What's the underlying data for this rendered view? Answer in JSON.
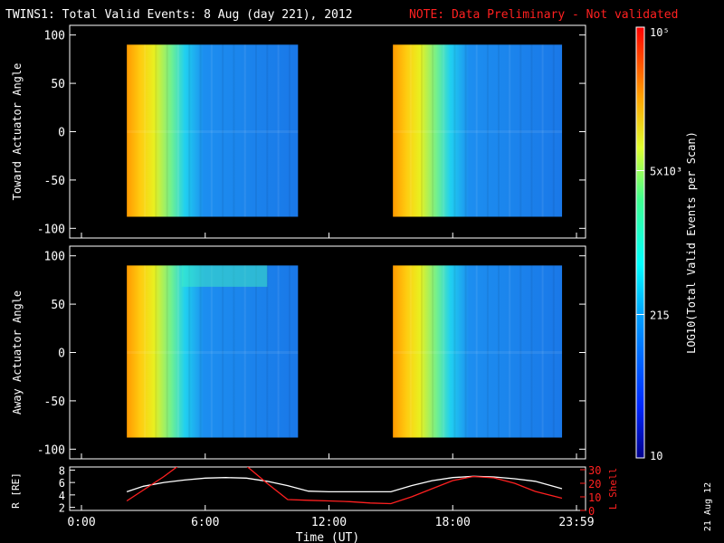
{
  "header": {
    "title": "TWINS1: Total Valid Events:  8 Aug (day 221), 2012",
    "note": "NOTE: Data Preliminary - Not validated",
    "note_color": "#ff2020",
    "side_date": "21 Aug 12"
  },
  "chart_data": [
    {
      "type": "heatmap",
      "ylabel": "Toward Actuator Angle",
      "ylim": [
        -110,
        110
      ],
      "yticks": [
        100,
        50,
        0,
        -50,
        -100
      ],
      "x_time_hours": [
        0,
        24
      ],
      "data_windows_hours": [
        [
          2.2,
          10.5
        ],
        [
          15.1,
          23.3
        ]
      ],
      "angle_range": [
        -88,
        90
      ]
    },
    {
      "type": "heatmap",
      "ylabel": "Away Actuator Angle",
      "ylim": [
        -110,
        110
      ],
      "yticks": [
        100,
        50,
        0,
        -50,
        -100
      ],
      "x_time_hours": [
        0,
        24
      ],
      "data_windows_hours": [
        [
          2.2,
          10.5
        ],
        [
          15.1,
          23.3
        ]
      ],
      "angle_range": [
        -88,
        90
      ]
    },
    {
      "type": "line",
      "ylabel_left": "R [RE]",
      "ylabel_right": "L Shell",
      "left_ticks": [
        8,
        6,
        4,
        2
      ],
      "right_ticks": [
        30,
        20,
        10,
        0
      ],
      "left_ylim": [
        1.5,
        8.5
      ],
      "right_ylim": [
        0,
        32
      ],
      "series": [
        {
          "color": "#ffffff",
          "x": [
            2.2,
            3,
            4,
            5,
            6,
            7,
            8,
            9,
            10,
            11,
            12,
            13,
            14,
            15,
            16,
            17,
            18,
            19,
            20,
            21,
            22,
            23.3
          ],
          "y": [
            4.5,
            5.4,
            6.0,
            6.4,
            6.7,
            6.8,
            6.7,
            6.2,
            5.5,
            4.6,
            4.5,
            4.5,
            4.5,
            4.5,
            5.5,
            6.3,
            6.8,
            7.0,
            6.9,
            6.6,
            6.2,
            5.0
          ]
        },
        {
          "color": "#ff2020",
          "x": [
            2.2,
            3,
            4,
            4.8,
            7.9,
            9,
            10,
            11,
            12,
            13,
            14,
            15,
            16,
            17,
            18,
            19,
            20,
            21,
            22,
            23.3
          ],
          "y": [
            7,
            15,
            25,
            34,
            34,
            20,
            8,
            7.5,
            7,
            6.5,
            5.5,
            5,
            10,
            16,
            22,
            25,
            24,
            20,
            14,
            9
          ]
        }
      ],
      "xticks": [
        "0:00",
        "6:00",
        "12:00",
        "18:00",
        "23:59"
      ],
      "xtick_hours": [
        0,
        6,
        12,
        18,
        24
      ],
      "xlabel": "Time (UT)"
    }
  ],
  "colorbar": {
    "label": "LOG10(Total Valid Events per Scan)",
    "ticks": [
      {
        "label": "10",
        "frac": 0.0
      },
      {
        "label": "215",
        "frac": 0.333
      },
      {
        "label": "5x10³",
        "frac": 0.667
      },
      {
        "label": "10⁵",
        "frac": 1.0
      }
    ]
  }
}
